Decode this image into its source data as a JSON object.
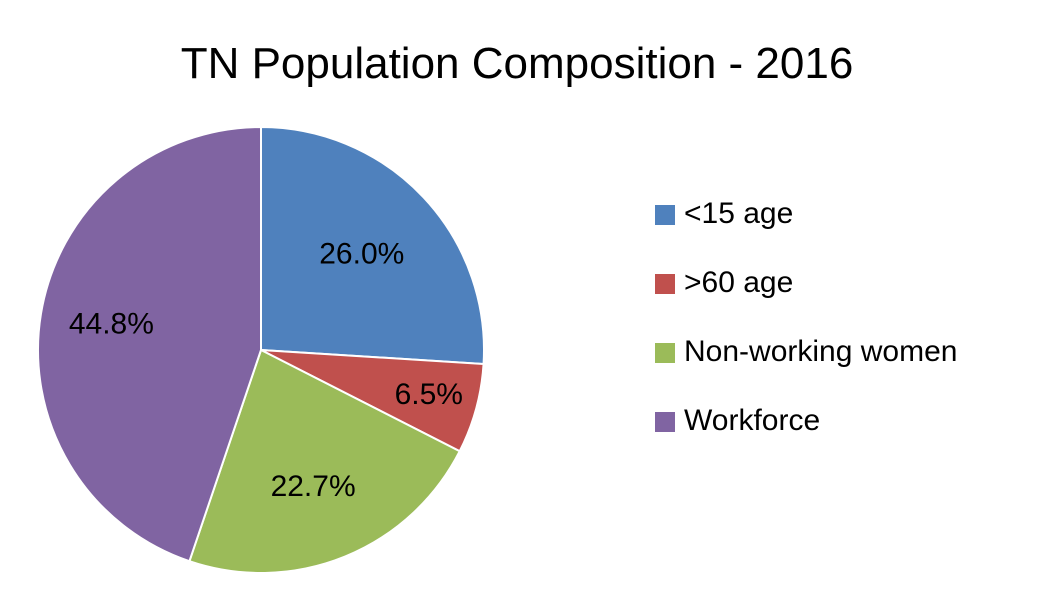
{
  "chart_data": {
    "type": "pie",
    "title": "TN Population Composition - 2016",
    "categories": [
      "<15 age",
      ">60 age",
      "Non-working women",
      "Workforce"
    ],
    "values": [
      26.0,
      6.5,
      22.7,
      44.8
    ],
    "value_labels": [
      "26.0%",
      "6.5%",
      "22.7%",
      "44.8%"
    ],
    "colors": [
      "#4F81BD",
      "#C0504D",
      "#9BBB59",
      "#8064A2"
    ],
    "legend_position": "right",
    "start_angle": "12 o'clock, clockwise"
  }
}
